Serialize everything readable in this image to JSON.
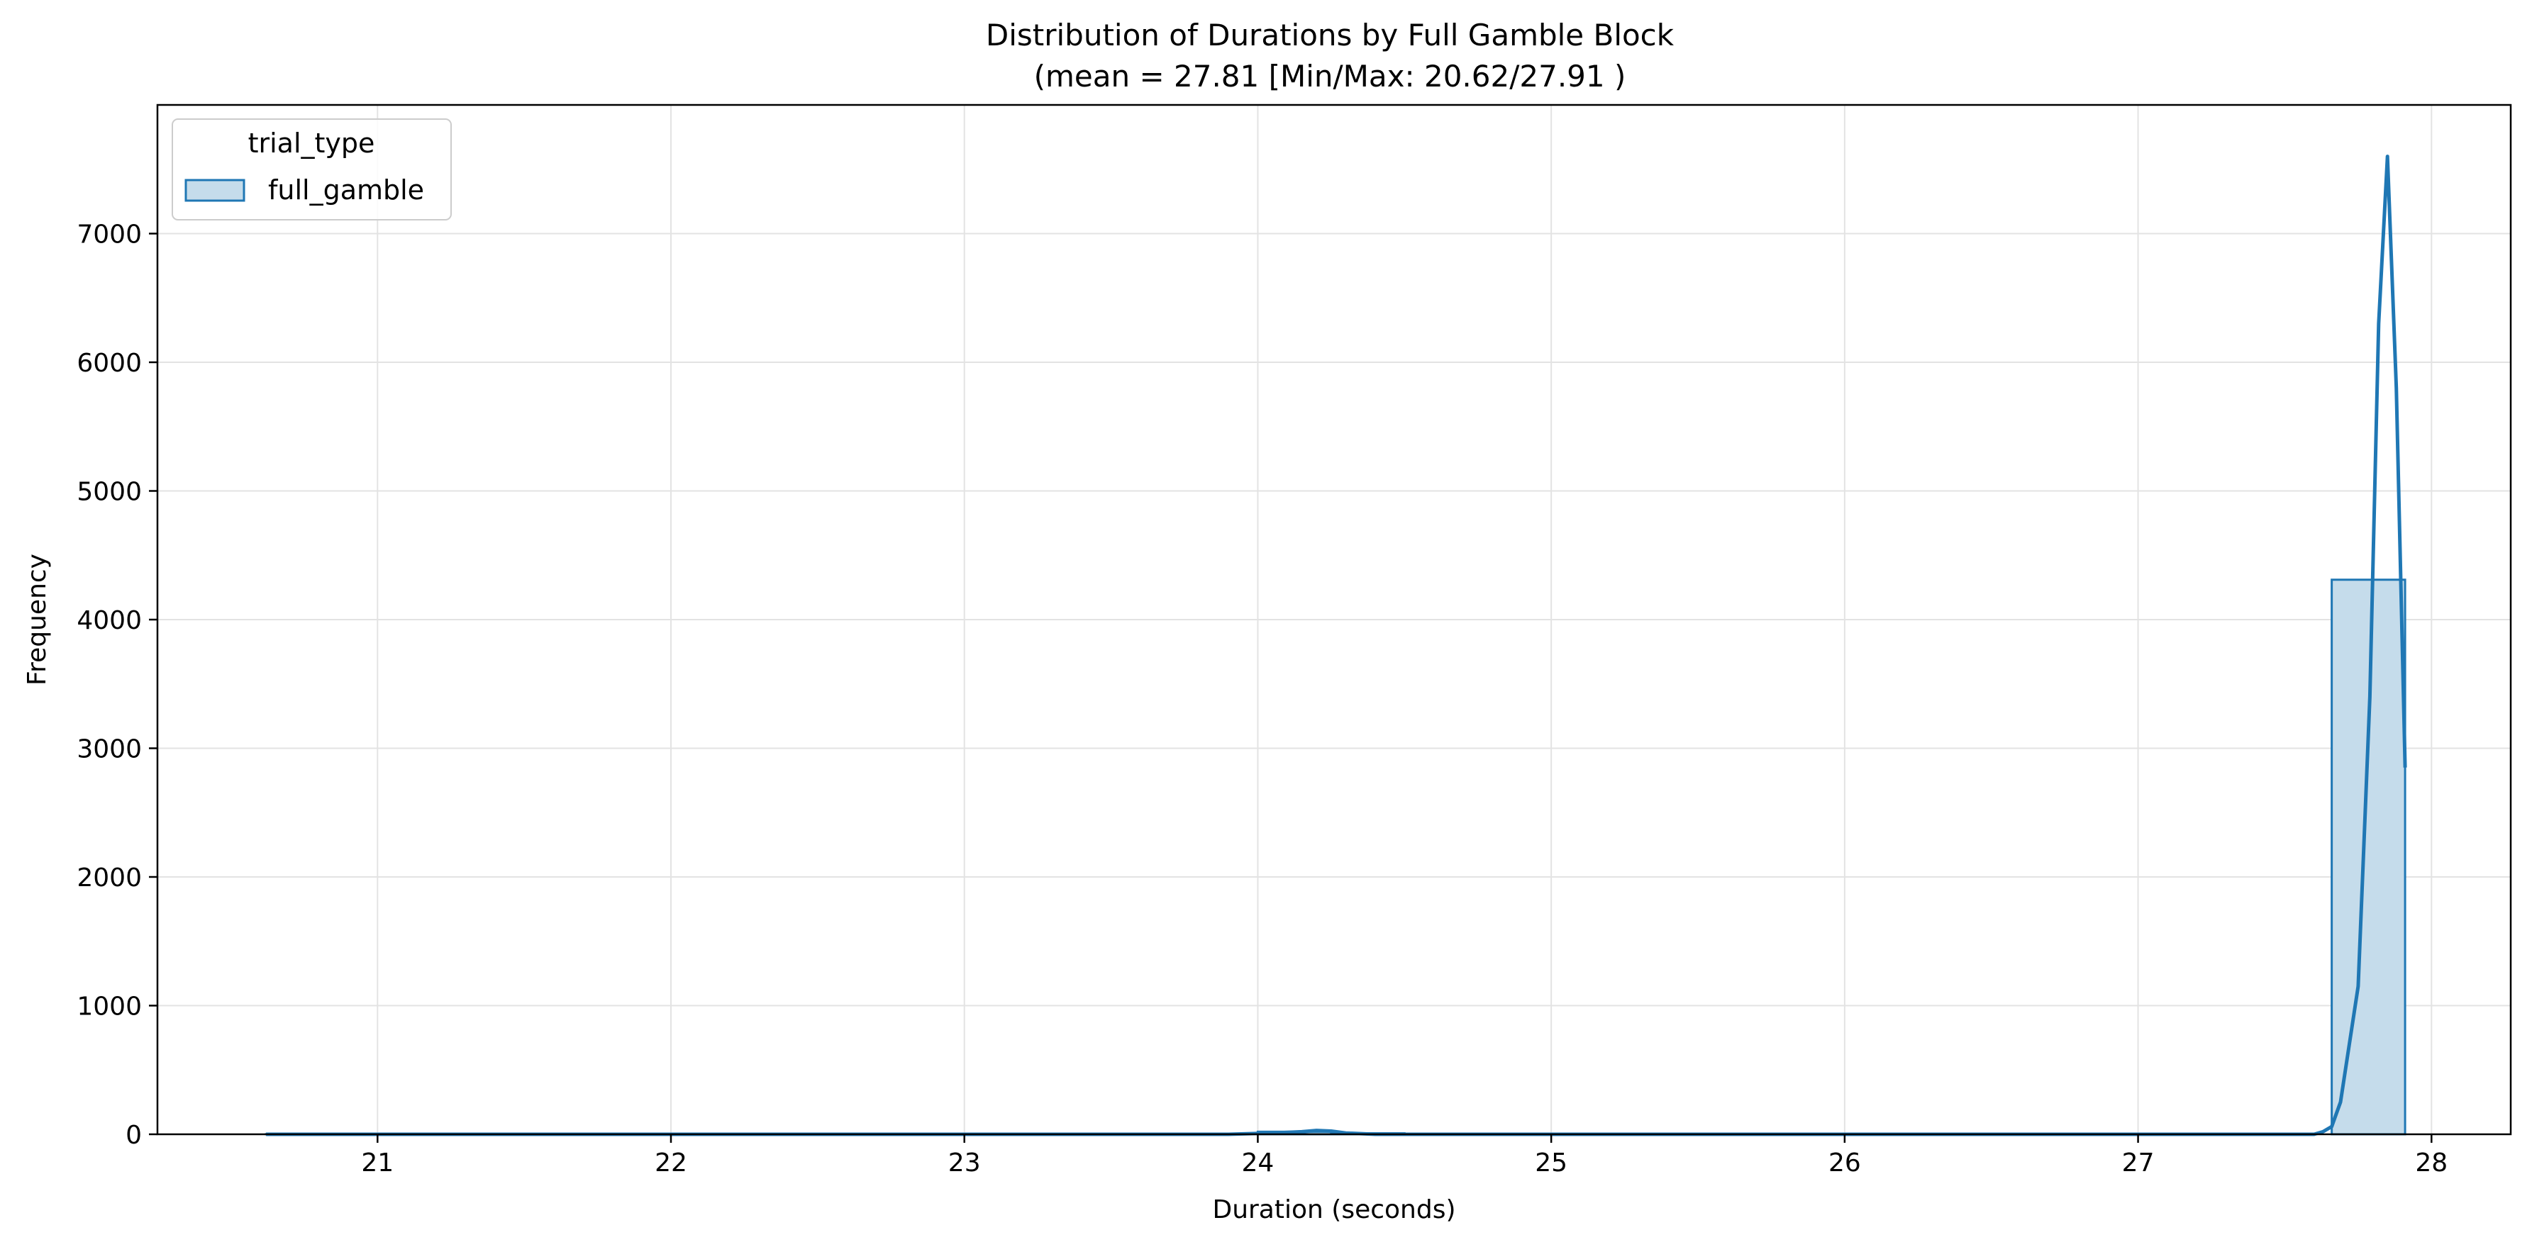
{
  "chart_data": {
    "type": "bar",
    "title": "Distribution of Durations by Full Gamble Block",
    "subtitle": "(mean = 27.81 [Min/Max: 20.62/27.91 )",
    "xlabel": "Duration (seconds)",
    "ylabel": "Frequency",
    "xlim": [
      20.25,
      28.27
    ],
    "ylim": [
      0,
      8000
    ],
    "xticks": [
      21,
      22,
      23,
      24,
      25,
      26,
      27,
      28
    ],
    "yticks": [
      0,
      1000,
      2000,
      3000,
      4000,
      5000,
      6000,
      7000
    ],
    "grid": true,
    "legend": {
      "title": "trial_type",
      "entries": [
        "full_gamble"
      ],
      "placement": "top-left"
    },
    "series": [
      {
        "name": "full_gamble",
        "color": "#1f77b4",
        "fill": "#c5dceb",
        "bins": [
          {
            "x0": 20.62,
            "x1": 20.87,
            "count": 1
          },
          {
            "x0": 24.0,
            "x1": 24.25,
            "count": 20
          },
          {
            "x0": 24.25,
            "x1": 24.5,
            "count": 8
          },
          {
            "x0": 27.66,
            "x1": 27.91,
            "count": 4310
          }
        ],
        "kde": [
          [
            20.62,
            0
          ],
          [
            23.9,
            0
          ],
          [
            24.05,
            10
          ],
          [
            24.15,
            20
          ],
          [
            24.2,
            30
          ],
          [
            24.25,
            25
          ],
          [
            24.3,
            10
          ],
          [
            24.4,
            0
          ],
          [
            27.6,
            0
          ],
          [
            27.63,
            20
          ],
          [
            27.66,
            60
          ],
          [
            27.69,
            250
          ],
          [
            27.75,
            1150
          ],
          [
            27.79,
            3400
          ],
          [
            27.82,
            6300
          ],
          [
            27.85,
            7600
          ],
          [
            27.88,
            5800
          ],
          [
            27.91,
            2850
          ]
        ]
      }
    ]
  }
}
